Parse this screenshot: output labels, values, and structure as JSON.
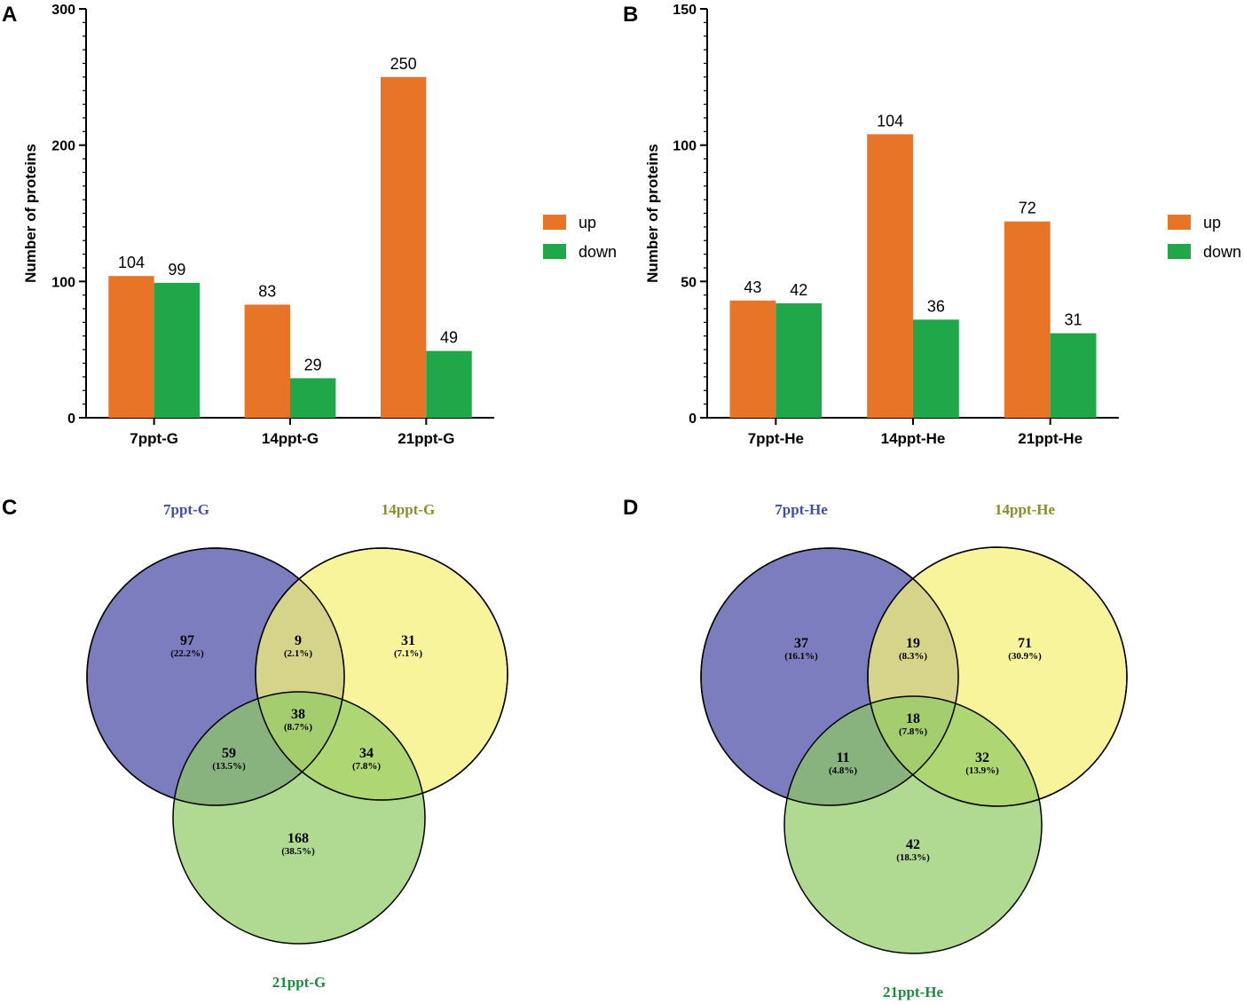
{
  "panels": {
    "A": "A",
    "B": "B",
    "C": "C",
    "D": "D"
  },
  "colors": {
    "up": "#E87427",
    "down": "#1FA74A",
    "venn_a": "#6E6FB8",
    "venn_b": "#F4F07A",
    "venn_c": "#8ECB63",
    "title_a": "#3F4FA8",
    "title_b": "#8C8C2C",
    "title_c": "#1F8A3E"
  },
  "chart_data": [
    {
      "type": "bar",
      "panel": "A",
      "ylabel": "Number of proteins",
      "xlabel": "",
      "ylim": [
        0,
        300
      ],
      "yticks": [
        "0",
        "100",
        "200",
        "300"
      ],
      "ytick_values": [
        0,
        100,
        200,
        300
      ],
      "categories": [
        "7ppt-G",
        "14ppt-G",
        "21ppt-G"
      ],
      "series": [
        {
          "name": "up",
          "values": [
            104,
            83,
            250
          ]
        },
        {
          "name": "down",
          "values": [
            99,
            29,
            49
          ]
        }
      ],
      "labels": {
        "up": [
          "104",
          "83",
          "250"
        ],
        "down": [
          "99",
          "29",
          "49"
        ]
      },
      "legend": [
        "up",
        "down"
      ]
    },
    {
      "type": "bar",
      "panel": "B",
      "ylabel": "Number of proteins",
      "xlabel": "",
      "ylim": [
        0,
        150
      ],
      "yticks": [
        "0",
        "50",
        "100",
        "150"
      ],
      "ytick_values": [
        0,
        50,
        100,
        150
      ],
      "categories": [
        "7ppt-He",
        "14ppt-He",
        "21ppt-He"
      ],
      "series": [
        {
          "name": "up",
          "values": [
            43,
            104,
            72
          ]
        },
        {
          "name": "down",
          "values": [
            42,
            36,
            31
          ]
        }
      ],
      "labels": {
        "up": [
          "43",
          "104",
          "72"
        ],
        "down": [
          "42",
          "36",
          "31"
        ]
      },
      "legend": [
        "up",
        "down"
      ]
    },
    {
      "type": "venn",
      "panel": "C",
      "sets": [
        "7ppt-G",
        "14ppt-G",
        "21ppt-G"
      ],
      "regions": {
        "a_only": {
          "count": "97",
          "pct": "(22.2%)"
        },
        "ab": {
          "count": "9",
          "pct": "(2.1%)"
        },
        "b_only": {
          "count": "31",
          "pct": "(7.1%)"
        },
        "abc": {
          "count": "38",
          "pct": "(8.7%)"
        },
        "ac": {
          "count": "59",
          "pct": "(13.5%)"
        },
        "bc": {
          "count": "34",
          "pct": "(7.8%)"
        },
        "c_only": {
          "count": "168",
          "pct": "(38.5%)"
        }
      }
    },
    {
      "type": "venn",
      "panel": "D",
      "sets": [
        "7ppt-He",
        "14ppt-He",
        "21ppt-He"
      ],
      "regions": {
        "a_only": {
          "count": "37",
          "pct": "(16.1%)"
        },
        "ab": {
          "count": "19",
          "pct": "(8.3%)"
        },
        "b_only": {
          "count": "71",
          "pct": "(30.9%)"
        },
        "abc": {
          "count": "18",
          "pct": "(7.8%)"
        },
        "ac": {
          "count": "11",
          "pct": "(4.8%)"
        },
        "bc": {
          "count": "32",
          "pct": "(13.9%)"
        },
        "c_only": {
          "count": "42",
          "pct": "(18.3%)"
        }
      }
    }
  ]
}
